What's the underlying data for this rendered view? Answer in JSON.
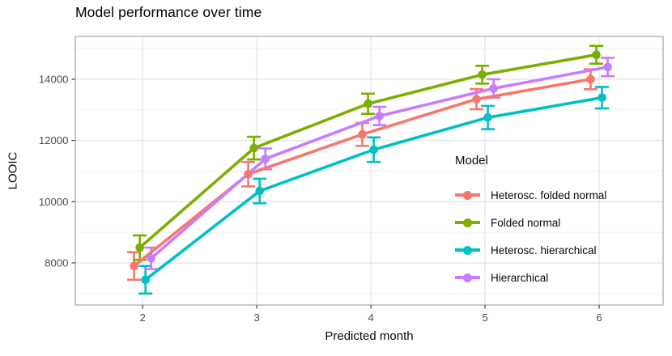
{
  "title": "Model performance over time",
  "chart_data": {
    "type": "line",
    "title": "Model performance over time",
    "xlabel": "Predicted month",
    "ylabel": "LOOIC",
    "legend_title": "Model",
    "legend_position": "inside-right",
    "grid": true,
    "error_bars": true,
    "x": [
      2,
      3,
      4,
      5,
      6
    ],
    "x_ticks": [
      "2",
      "3",
      "4",
      "5",
      "6"
    ],
    "y_ticks": [
      8000,
      10000,
      12000,
      14000
    ],
    "y_minor_ticks": [
      7000,
      9000,
      11000,
      13000,
      15000
    ],
    "xlim": [
      1.41,
      6.56
    ],
    "ylim": [
      6625,
      15400
    ],
    "dodge_offsets": [
      -0.075,
      -0.025,
      0.025,
      0.075
    ],
    "series": [
      {
        "name": "Heterosc. folded normal",
        "color": "#F8766D",
        "values": [
          7900,
          10900,
          12200,
          13350,
          14000
        ],
        "errors": [
          450,
          400,
          375,
          330,
          325
        ]
      },
      {
        "name": "Folded normal",
        "color": "#7CAE00",
        "values": [
          8500,
          11750,
          13200,
          14150,
          14800
        ],
        "errors": [
          400,
          370,
          330,
          290,
          290
        ]
      },
      {
        "name": "Heterosc. hierarchical",
        "color": "#00BFC4",
        "values": [
          7450,
          10350,
          11700,
          12750,
          13400
        ],
        "errors": [
          450,
          400,
          400,
          380,
          350
        ]
      },
      {
        "name": "Hierarchical",
        "color": "#C77CFF",
        "values": [
          8150,
          11400,
          12800,
          13700,
          14400
        ],
        "errors": [
          350,
          340,
          300,
          300,
          300
        ]
      }
    ]
  },
  "styles": {
    "panel_border": "#b3b3b3",
    "grid_major": "#e5e5e5",
    "grid_minor": "#f0f0f0",
    "tick_mark": "#333333",
    "tick_label": "#4d4d4d",
    "text": "#0a0a0a"
  }
}
